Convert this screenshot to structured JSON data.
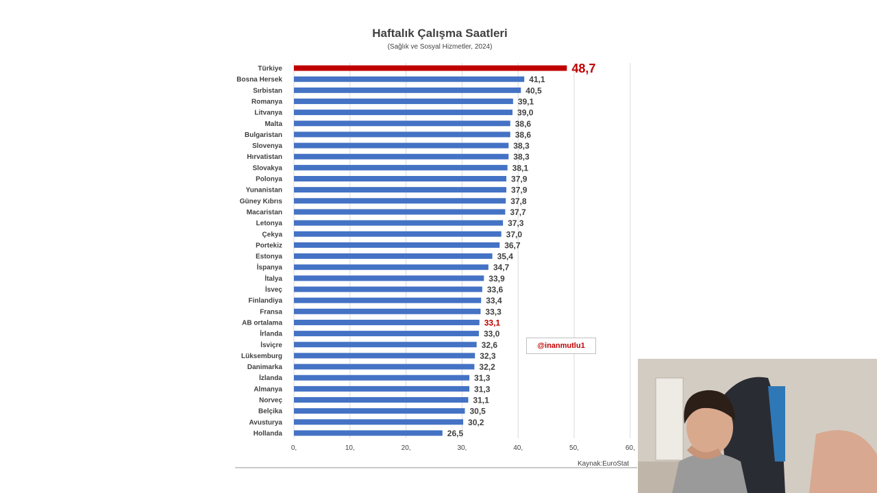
{
  "chart_data": {
    "type": "bar",
    "orientation": "horizontal",
    "title": "Haftalık Çalışma Saatleri",
    "subtitle": "(Sağlık ve Sosyal Hizmetler, 2024)",
    "categories": [
      "Türkiye",
      "Bosna Hersek",
      "Sırbistan",
      "Romanya",
      "Litvanya",
      "Malta",
      "Bulgaristan",
      "Slovenya",
      "Hırvatistan",
      "Slovakya",
      "Polonya",
      "Yunanistan",
      "Güney Kıbrıs",
      "Macaristan",
      "Letonya",
      "Çekya",
      "Portekiz",
      "Estonya",
      "İspanya",
      "İtalya",
      "İsveç",
      "Finlandiya",
      "Fransa",
      "AB ortalama",
      "İrlanda",
      "İsviçre",
      "Lüksemburg",
      "Danimarka",
      "İzlanda",
      "Almanya",
      "Norveç",
      "Belçika",
      "Avusturya",
      "Hollanda"
    ],
    "values": [
      48.7,
      41.1,
      40.5,
      39.1,
      39.0,
      38.6,
      38.6,
      38.3,
      38.3,
      38.1,
      37.9,
      37.9,
      37.8,
      37.7,
      37.3,
      37.0,
      36.7,
      35.4,
      34.7,
      33.9,
      33.6,
      33.4,
      33.3,
      33.1,
      33.0,
      32.6,
      32.3,
      32.2,
      31.3,
      31.3,
      31.1,
      30.5,
      30.2,
      26.5
    ],
    "value_labels": [
      "48,7",
      "41,1",
      "40,5",
      "39,1",
      "39,0",
      "38,6",
      "38,6",
      "38,3",
      "38,3",
      "38,1",
      "37,9",
      "37,9",
      "37,8",
      "37,7",
      "37,3",
      "37,0",
      "36,7",
      "35,4",
      "34,7",
      "33,9",
      "33,6",
      "33,4",
      "33,3",
      "33,1",
      "33,0",
      "32,6",
      "32,3",
      "32,2",
      "31,3",
      "31,3",
      "31,1",
      "30,5",
      "30,2",
      "26,5"
    ],
    "highlight": {
      "bar": "Türkiye",
      "label": "AB ortalama"
    },
    "xlim": [
      0,
      60
    ],
    "xticks": [
      "0,",
      "10,",
      "20,",
      "30,",
      "40,",
      "50,",
      "60,"
    ],
    "grid": true,
    "colors": {
      "bar": "#4472c4",
      "highlight_bar": "#c00000",
      "highlight_text": "#c00000",
      "text": "#404040",
      "grid": "#d9d9d9"
    }
  },
  "source": "Kaynak:EuroStat",
  "watermark": "@inanmutlu1"
}
